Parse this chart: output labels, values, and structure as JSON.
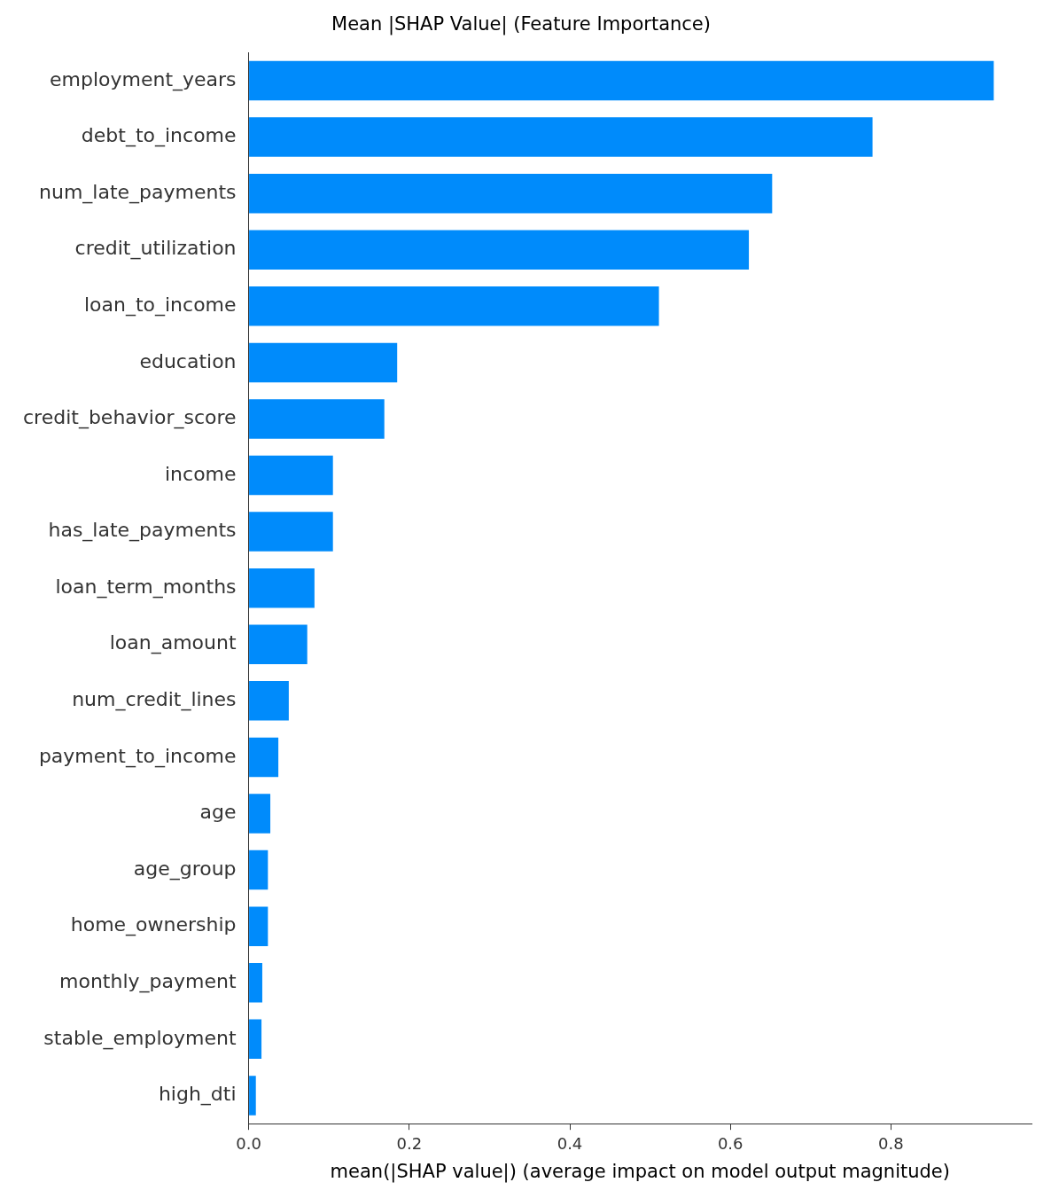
{
  "chart_data": {
    "type": "bar",
    "orientation": "horizontal",
    "title": "Mean |SHAP Value| (Feature Importance)",
    "xlabel": "mean(|SHAP value|) (average impact on model output magnitude)",
    "categories": [
      "employment_years",
      "debt_to_income",
      "num_late_payments",
      "credit_utilization",
      "loan_to_income",
      "education",
      "credit_behavior_score",
      "income",
      "has_late_payments",
      "loan_term_months",
      "loan_amount",
      "num_credit_lines",
      "payment_to_income",
      "age",
      "age_group",
      "home_ownership",
      "monthly_payment",
      "stable_employment",
      "high_dti"
    ],
    "values": [
      0.928,
      0.777,
      0.652,
      0.623,
      0.511,
      0.185,
      0.169,
      0.105,
      0.105,
      0.082,
      0.073,
      0.05,
      0.037,
      0.027,
      0.024,
      0.024,
      0.017,
      0.016,
      0.009
    ],
    "color": "#008bfb",
    "xlim": [
      0,
      0.975
    ],
    "xticks": [
      {
        "value": 0,
        "label": "0.0"
      },
      {
        "value": 0.2,
        "label": "0.2"
      },
      {
        "value": 0.4,
        "label": "0.4"
      },
      {
        "value": 0.6,
        "label": "0.6"
      },
      {
        "value": 0.8,
        "label": "0.8"
      }
    ],
    "grid": false,
    "legend": false
  }
}
